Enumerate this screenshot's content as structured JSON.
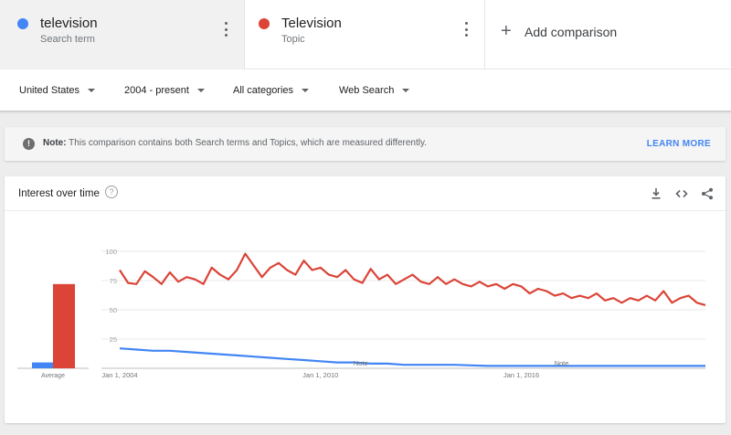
{
  "comparison": {
    "terms": [
      {
        "name": "television",
        "type": "Search term",
        "color": "#4285f4"
      },
      {
        "name": "Television",
        "type": "Topic",
        "color": "#db4437"
      }
    ],
    "add_label": "Add comparison",
    "add_icon": "plus-icon"
  },
  "filters": {
    "region": "United States",
    "time": "2004 - present",
    "category": "All categories",
    "search_type": "Web Search"
  },
  "note": {
    "prefix": "Note:",
    "text": "This comparison contains both Search terms and Topics, which are measured differently.",
    "link": "LEARN MORE"
  },
  "interest": {
    "title": "Interest over time",
    "help_icon": "?",
    "average_label": "Average",
    "note_markers": [
      "Note",
      "Note"
    ],
    "icons": [
      "download-icon",
      "embed-icon",
      "share-icon"
    ]
  },
  "chart_data": {
    "type": "line",
    "x_ticks": [
      "Jan 1, 2004",
      "Jan 1, 2010",
      "Jan 1, 2016"
    ],
    "y_ticks": [
      25,
      50,
      75,
      100
    ],
    "ylim": [
      0,
      100
    ],
    "x_range": [
      2004.0,
      2021.5
    ],
    "average": {
      "television": 5,
      "Television": 72
    },
    "series": [
      {
        "name": "television",
        "color": "#4285f4",
        "points": [
          [
            2004.0,
            17
          ],
          [
            2004.5,
            16
          ],
          [
            2005.0,
            15
          ],
          [
            2005.5,
            15
          ],
          [
            2006.0,
            14
          ],
          [
            2006.5,
            13
          ],
          [
            2007.0,
            12
          ],
          [
            2007.5,
            11
          ],
          [
            2008.0,
            10
          ],
          [
            2008.5,
            9
          ],
          [
            2009.0,
            8
          ],
          [
            2009.5,
            7
          ],
          [
            2010.0,
            6
          ],
          [
            2010.5,
            5
          ],
          [
            2011.0,
            5
          ],
          [
            2011.5,
            4
          ],
          [
            2012.0,
            4
          ],
          [
            2012.5,
            3
          ],
          [
            2013.0,
            3
          ],
          [
            2014.0,
            3
          ],
          [
            2015.0,
            2
          ],
          [
            2016.0,
            2
          ],
          [
            2017.0,
            2
          ],
          [
            2018.0,
            2
          ],
          [
            2019.0,
            2
          ],
          [
            2020.0,
            2
          ],
          [
            2021.0,
            2
          ],
          [
            2021.5,
            2
          ]
        ]
      },
      {
        "name": "Television",
        "color": "#db4437",
        "points": [
          [
            2004.0,
            84
          ],
          [
            2004.25,
            73
          ],
          [
            2004.5,
            72
          ],
          [
            2004.75,
            83
          ],
          [
            2005.0,
            78
          ],
          [
            2005.25,
            72
          ],
          [
            2005.5,
            82
          ],
          [
            2005.75,
            74
          ],
          [
            2006.0,
            78
          ],
          [
            2006.25,
            76
          ],
          [
            2006.5,
            72
          ],
          [
            2006.75,
            86
          ],
          [
            2007.0,
            80
          ],
          [
            2007.25,
            76
          ],
          [
            2007.5,
            84
          ],
          [
            2007.75,
            98
          ],
          [
            2008.0,
            88
          ],
          [
            2008.25,
            78
          ],
          [
            2008.5,
            86
          ],
          [
            2008.75,
            90
          ],
          [
            2009.0,
            84
          ],
          [
            2009.25,
            80
          ],
          [
            2009.5,
            92
          ],
          [
            2009.75,
            84
          ],
          [
            2010.0,
            86
          ],
          [
            2010.25,
            80
          ],
          [
            2010.5,
            78
          ],
          [
            2010.75,
            84
          ],
          [
            2011.0,
            76
          ],
          [
            2011.25,
            73
          ],
          [
            2011.5,
            85
          ],
          [
            2011.75,
            76
          ],
          [
            2012.0,
            80
          ],
          [
            2012.25,
            72
          ],
          [
            2012.5,
            76
          ],
          [
            2012.75,
            80
          ],
          [
            2013.0,
            74
          ],
          [
            2013.25,
            72
          ],
          [
            2013.5,
            78
          ],
          [
            2013.75,
            72
          ],
          [
            2014.0,
            76
          ],
          [
            2014.25,
            72
          ],
          [
            2014.5,
            70
          ],
          [
            2014.75,
            74
          ],
          [
            2015.0,
            70
          ],
          [
            2015.25,
            72
          ],
          [
            2015.5,
            68
          ],
          [
            2015.75,
            72
          ],
          [
            2016.0,
            70
          ],
          [
            2016.25,
            64
          ],
          [
            2016.5,
            68
          ],
          [
            2016.75,
            66
          ],
          [
            2017.0,
            62
          ],
          [
            2017.25,
            64
          ],
          [
            2017.5,
            60
          ],
          [
            2017.75,
            62
          ],
          [
            2018.0,
            60
          ],
          [
            2018.25,
            64
          ],
          [
            2018.5,
            58
          ],
          [
            2018.75,
            60
          ],
          [
            2019.0,
            56
          ],
          [
            2019.25,
            60
          ],
          [
            2019.5,
            58
          ],
          [
            2019.75,
            62
          ],
          [
            2020.0,
            58
          ],
          [
            2020.25,
            66
          ],
          [
            2020.5,
            56
          ],
          [
            2020.75,
            60
          ],
          [
            2021.0,
            62
          ],
          [
            2021.25,
            56
          ],
          [
            2021.5,
            54
          ]
        ]
      }
    ]
  }
}
